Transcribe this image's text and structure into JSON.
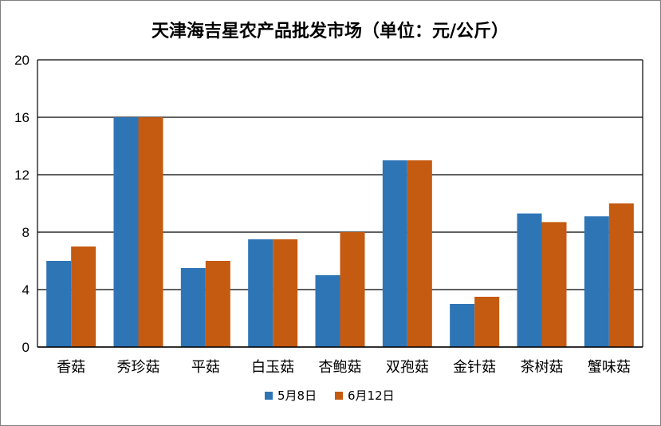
{
  "chart_data": {
    "type": "bar",
    "title": "天津海吉星农产品批发市场（单位：元/公斤）",
    "categories": [
      "香菇",
      "秀珍菇",
      "平菇",
      "白玉菇",
      "杏鲍菇",
      "双孢菇",
      "金针菇",
      "茶树菇",
      "蟹味菇"
    ],
    "series": [
      {
        "name": "5月8日",
        "color": "#2E75B6",
        "values": [
          6,
          16,
          5.5,
          7.5,
          5,
          13,
          3,
          9.3,
          9.1
        ]
      },
      {
        "name": "6月12日",
        "color": "#C55A11",
        "values": [
          7,
          16,
          6,
          7.5,
          8,
          13,
          3.5,
          8.7,
          10
        ]
      }
    ],
    "ylim": [
      0,
      20
    ],
    "yticks": [
      0,
      4,
      8,
      12,
      16,
      20
    ],
    "grid": true,
    "legend": "bottom-center",
    "xlabel": "",
    "ylabel": ""
  }
}
